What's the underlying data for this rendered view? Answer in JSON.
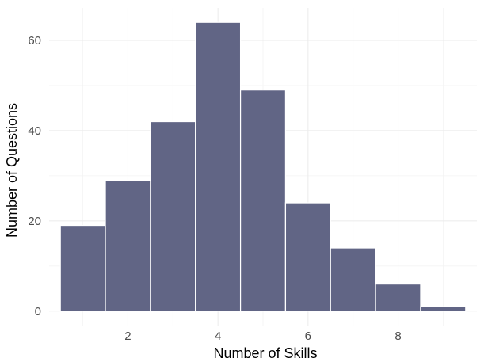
{
  "chart_data": {
    "type": "bar",
    "subtype": "histogram",
    "title": "",
    "xlabel": "Number of Skills",
    "ylabel": "Number of Questions",
    "bins": [
      {
        "x": 1,
        "count": 19
      },
      {
        "x": 2,
        "count": 29
      },
      {
        "x": 3,
        "count": 42
      },
      {
        "x": 4,
        "count": 64
      },
      {
        "x": 5,
        "count": 49
      },
      {
        "x": 6,
        "count": 24
      },
      {
        "x": 7,
        "count": 14
      },
      {
        "x": 8,
        "count": 6
      },
      {
        "x": 9,
        "count": 1
      }
    ],
    "bin_width": 1,
    "xlim": [
      0.25,
      9.75
    ],
    "ylim": [
      -3.2,
      67.2
    ],
    "x_ticks": [
      2,
      4,
      6,
      8
    ],
    "x_tick_labels": [
      "2",
      "4",
      "6",
      "8"
    ],
    "y_ticks": [
      0,
      20,
      40,
      60
    ],
    "y_tick_labels": [
      "0",
      "20",
      "40",
      "60"
    ],
    "grid": true,
    "bar_color": "#616585",
    "bar_edge_color": "#ffffff"
  }
}
